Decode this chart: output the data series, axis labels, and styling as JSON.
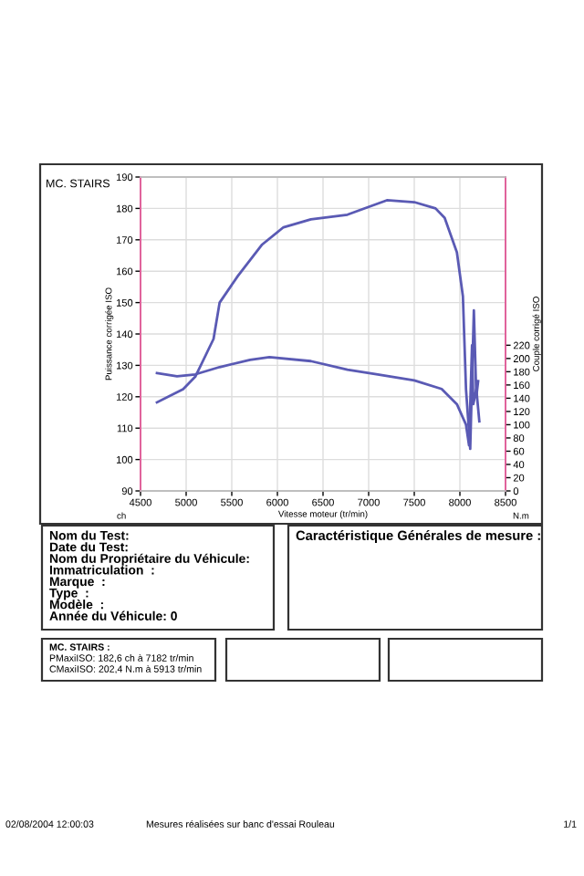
{
  "chart_data": {
    "type": "line",
    "xlabel": "Vitesse moteur (tr/min)",
    "ylabel": "Puissance corrigée ISO",
    "y2label": "Couple corrigé ISO",
    "xlim": [
      4500,
      8500
    ],
    "xticks": [
      4500,
      5000,
      5500,
      6000,
      6500,
      7000,
      7500,
      8000,
      8500
    ],
    "ylim": [
      90,
      190
    ],
    "yticks": [
      90,
      100,
      110,
      120,
      130,
      140,
      150,
      160,
      170,
      180,
      190
    ],
    "y2lim": [
      0,
      474
    ],
    "y2ticks": [
      0,
      20,
      40,
      60,
      80,
      100,
      120,
      140,
      160,
      180,
      200,
      220
    ],
    "grid": true,
    "line_style": "solid",
    "marker": "none",
    "series": [
      {
        "color": "#5a5ab4",
        "x": [
          4680,
          4967,
          5100,
          5300,
          5367,
          5567,
          5833,
          6067,
          6367,
          6767,
          7000,
          7200,
          7500,
          7733,
          7833,
          7967,
          8033,
          8067,
          8113,
          8153,
          8180,
          8200
        ],
        "values": [
          118.2,
          122.4,
          126.4,
          138.4,
          150,
          158.5,
          168.5,
          174,
          176.5,
          178,
          180.5,
          182.6,
          182,
          180,
          177,
          166,
          152,
          122.4,
          103.4,
          147.5,
          120,
          125
        ]
      },
      {
        "color": "#5a5ab4",
        "axis": "y2",
        "x": [
          4680,
          4900,
          5100,
          5367,
          5700,
          5913,
          6367,
          6767,
          7100,
          7500,
          7800,
          7967,
          8067,
          8100,
          8133,
          8147,
          8180,
          8213
        ],
        "values": [
          178,
          173,
          176,
          187,
          198,
          202,
          196,
          183,
          176,
          167,
          154,
          131,
          100,
          69,
          220,
          131,
          154,
          105
        ]
      }
    ],
    "annotations": [
      "MC. STAIRS",
      "ch",
      "N.m",
      "Nom du Test:",
      "Date du Test:",
      "Nom du Propriétaire du Véhicule:",
      "Immatriculation  :",
      "Marque  :",
      "Type  :",
      "Modèle  :",
      "Année du Véhicule: 0",
      "Caractéristique Générales de mesure :",
      "MC. STAIRS :",
      "PMaxiISO: 182,6 ch à 7182 tr/min",
      "CMaxiISO: 202,4 N.m à 5913 tr/min",
      "02/08/2004 12:00:03",
      "Mesures réalisées sur banc d'essai Rouleau",
      "1/1"
    ]
  }
}
